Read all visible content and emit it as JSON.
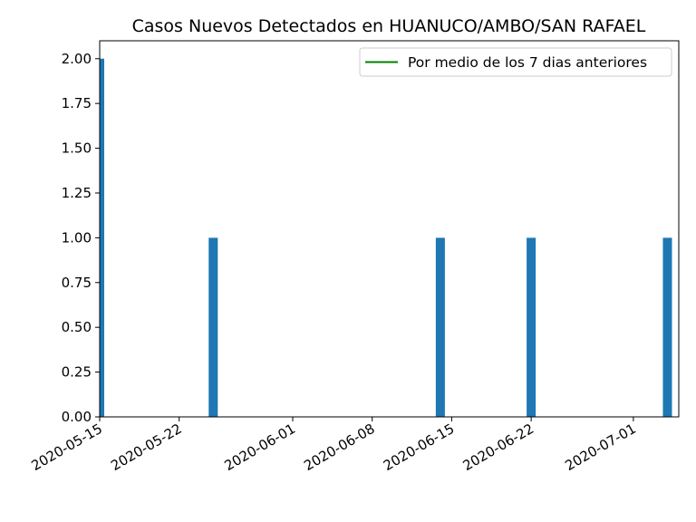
{
  "chart_data": {
    "type": "bar",
    "title": "Casos Nuevos Detectados en HUANUCO/AMBO/SAN RAFAEL",
    "xlabel": "",
    "ylabel": "",
    "x_type": "date",
    "xlim": [
      "2020-05-15",
      "2020-07-05"
    ],
    "ylim": [
      0,
      2.1
    ],
    "x_ticks": [
      "2020-05-15",
      "2020-05-22",
      "2020-06-01",
      "2020-06-08",
      "2020-06-15",
      "2020-06-22",
      "2020-07-01"
    ],
    "y_ticks": [
      "0.00",
      "0.25",
      "0.50",
      "0.75",
      "1.00",
      "1.25",
      "1.50",
      "1.75",
      "2.00"
    ],
    "bars": [
      {
        "date": "2020-05-15",
        "value": 2
      },
      {
        "date": "2020-05-25",
        "value": 1
      },
      {
        "date": "2020-06-14",
        "value": 1
      },
      {
        "date": "2020-06-22",
        "value": 1
      },
      {
        "date": "2020-07-04",
        "value": 1
      }
    ],
    "bar_color": "#1f77b4",
    "legend": {
      "placement": "top-right",
      "entries": [
        {
          "label": "Por medio de los 7 dias anteriores",
          "color": "#008000",
          "marker": "line"
        }
      ]
    },
    "grid": false
  }
}
